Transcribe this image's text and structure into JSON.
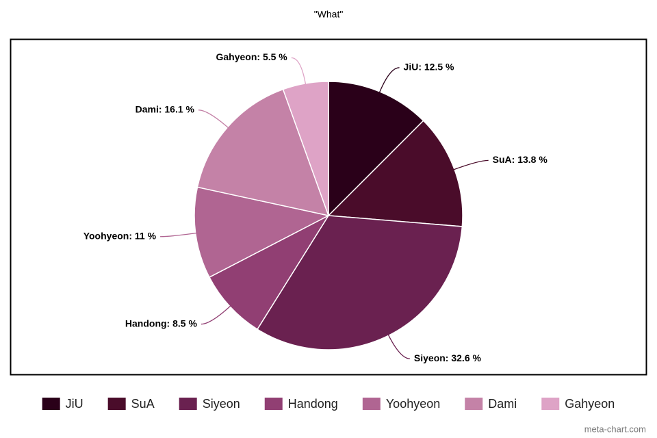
{
  "chart_data": {
    "type": "pie",
    "title": "\"What\"",
    "categories": [
      "JiU",
      "SuA",
      "Siyeon",
      "Handong",
      "Yoohyeon",
      "Dami",
      "Gahyeon"
    ],
    "values": [
      12.5,
      13.8,
      32.6,
      8.5,
      11,
      16.1,
      5.5
    ],
    "value_labels": [
      "JiU: 12.5 %",
      "SuA: 13.8 %",
      "Siyeon: 32.6 %",
      "Handong: 8.5 %",
      "Yoohyeon: 11 %",
      "Dami: 16.1 %",
      "Gahyeon: 5.5 %"
    ],
    "colors": [
      "#2a0019",
      "#4a0c2a",
      "#6a2150",
      "#913f73",
      "#b06592",
      "#c482a7",
      "#dea3c6"
    ],
    "legend": "bottom",
    "watermark": "meta-chart.com"
  }
}
